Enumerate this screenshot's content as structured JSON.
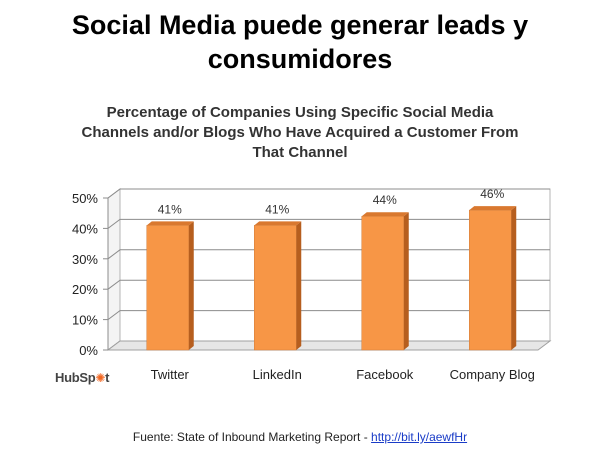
{
  "slide": {
    "title_line1": "Social Media puede generar leads y",
    "title_line2": "consumidores"
  },
  "chart_data": {
    "type": "bar",
    "title_line1": "Percentage of Companies Using Specific Social Media",
    "title_line2": "Channels and/or Blogs Who Have Acquired a Customer From",
    "title_line3": "That Channel",
    "categories": [
      "Twitter",
      "LinkedIn",
      "Facebook",
      "Company Blog"
    ],
    "values": [
      41,
      41,
      44,
      46
    ],
    "data_labels": [
      "41%",
      "41%",
      "44%",
      "46%"
    ],
    "y_ticks": [
      0,
      10,
      20,
      30,
      40,
      50
    ],
    "y_tick_labels": [
      "0%",
      "10%",
      "20%",
      "30%",
      "40%",
      "50%"
    ],
    "ylim": [
      0,
      50
    ],
    "bar_color": "#f79646",
    "grid": true
  },
  "logo": {
    "text_a": "HubSp",
    "text_b": "t"
  },
  "source": {
    "text": "Fuente: State of Inbound Marketing Report - ",
    "link": "http://bit.ly/aewfHr"
  }
}
